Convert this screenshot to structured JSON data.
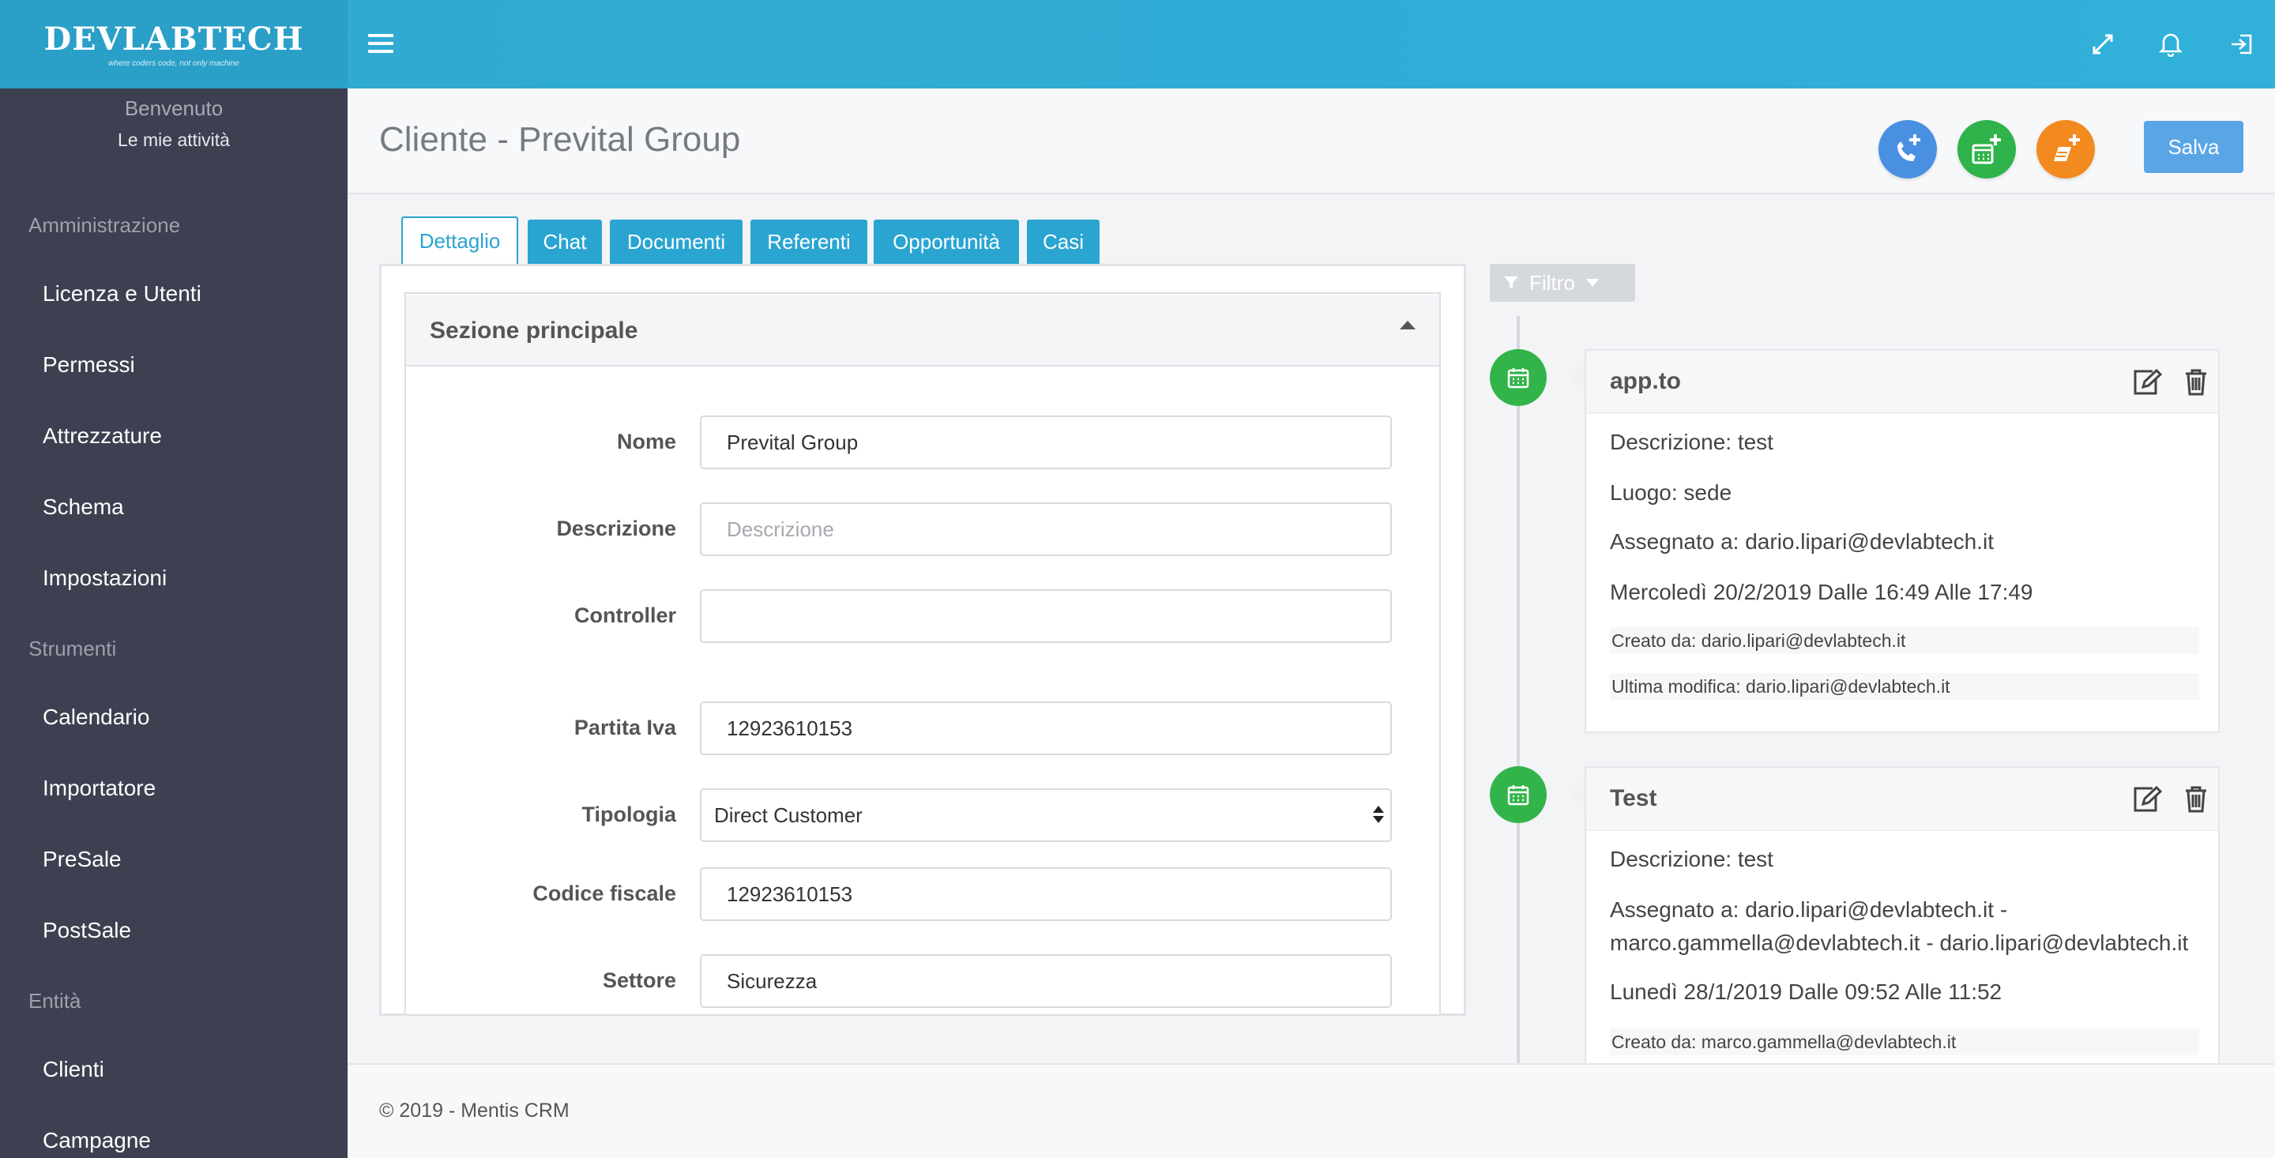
{
  "brand": {
    "name": "DEVLABTECH",
    "tagline": "where coders code, not only machine"
  },
  "topbar": {
    "menu_icon": "hamburger-icon",
    "icons": [
      "expand-icon",
      "bell-icon",
      "logout-icon"
    ]
  },
  "sidebar": {
    "welcome": "Benvenuto",
    "my_activities": "Le mie attività",
    "sections": [
      {
        "title": "Amministrazione",
        "items": [
          "Licenza e Utenti",
          "Permessi",
          "Attrezzature",
          "Schema",
          "Impostazioni"
        ]
      },
      {
        "title": "Strumenti",
        "items": [
          "Calendario",
          "Importatore",
          "PreSale",
          "PostSale"
        ]
      },
      {
        "title": "Entità",
        "items": [
          "Clienti",
          "Campagne"
        ]
      }
    ]
  },
  "header": {
    "title": "Cliente - Prevital Group",
    "actions": [
      {
        "icon": "phone-plus-icon",
        "color": "#4a90e2"
      },
      {
        "icon": "calendar-plus-icon",
        "color": "#2fb34a"
      },
      {
        "icon": "note-plus-icon",
        "color": "#f28a1f"
      }
    ],
    "save_label": "Salva"
  },
  "tabs": [
    "Dettaglio",
    "Chat",
    "Documenti",
    "Referenti",
    "Opportunità",
    "Casi"
  ],
  "main_section": {
    "title": "Sezione principale",
    "fields": {
      "nome": {
        "label": "Nome",
        "value": "Prevital Group"
      },
      "descrizione": {
        "label": "Descrizione",
        "value": "",
        "placeholder": "Descrizione"
      },
      "controller": {
        "label": "Controller",
        "value": ""
      },
      "partita_iva": {
        "label": "Partita Iva",
        "value": "12923610153"
      },
      "tipologia": {
        "label": "Tipologia",
        "value": "Direct Customer"
      },
      "codice_fiscale": {
        "label": "Codice fiscale",
        "value": "12923610153"
      },
      "settore": {
        "label": "Settore",
        "value": "Sicurezza"
      }
    }
  },
  "timeline": {
    "filter_label": "Filtro",
    "events": [
      {
        "title": "app.to",
        "lines": [
          "Descrizione: test",
          "Luogo: sede",
          "Assegnato a: dario.lipari@devlabtech.it",
          "Mercoledì 20/2/2019 Dalle 16:49 Alle 17:49"
        ],
        "created_by": "Creato da: dario.lipari@devlabtech.it",
        "modified_by": "Ultima modifica: dario.lipari@devlabtech.it"
      },
      {
        "title": "Test",
        "lines": [
          "Descrizione: test",
          "Assegnato a: dario.lipari@devlabtech.it -",
          "marco.gammella@devlabtech.it - dario.lipari@devlabtech.it",
          "Lunedì 28/1/2019 Dalle 09:52 Alle 11:52"
        ],
        "created_by": "Creato da: marco.gammella@devlabtech.it"
      }
    ]
  },
  "footer": {
    "text": "© 2019 - Mentis CRM"
  }
}
